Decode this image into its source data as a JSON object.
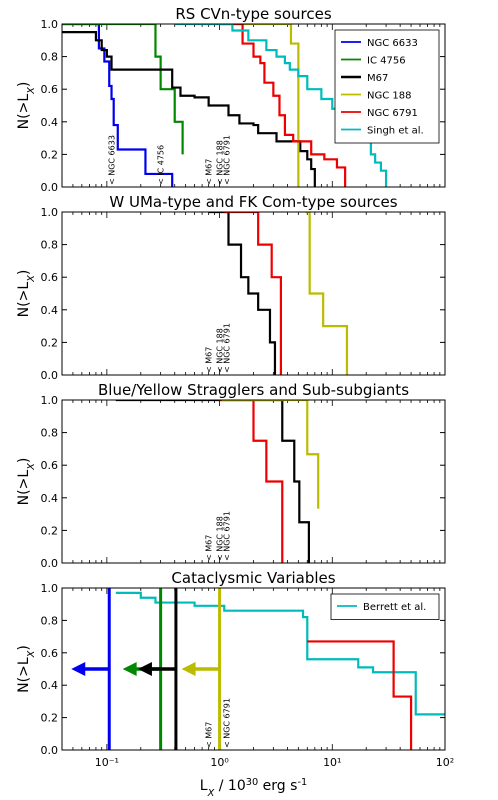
{
  "chart_data": [
    {
      "type": "line",
      "step": true,
      "title": "RS CVn-type sources",
      "ylabel": "N(>L_X)",
      "xscale": "log",
      "xlim": [
        0.04,
        100
      ],
      "ylim": [
        0,
        1
      ],
      "yticks": [
        "0.0",
        "0.2",
        "0.4",
        "0.6",
        "0.8",
        "1.0"
      ],
      "legend": {
        "placement": "top-right",
        "entries": [
          "NGC 6633",
          "IC 4756",
          "M67",
          "NGC 188",
          "NGC 6791",
          "Singh et al."
        ]
      },
      "series": [
        {
          "name": "NGC 6633",
          "color": "#0000ee",
          "x": [
            0.04,
            0.085,
            0.095,
            0.105,
            0.11,
            0.115,
            0.125,
            0.16,
            0.22,
            0.38
          ],
          "y": [
            1.0,
            0.85,
            0.77,
            0.62,
            0.54,
            0.38,
            0.23,
            0.23,
            0.08,
            0.0
          ]
        },
        {
          "name": "IC 4756",
          "color": "#008800",
          "x": [
            0.04,
            0.26,
            0.27,
            0.3,
            0.4,
            0.47
          ],
          "y": [
            1.0,
            1.0,
            0.8,
            0.6,
            0.4,
            0.2
          ]
        },
        {
          "name": "M67",
          "color": "#000000",
          "x": [
            0.04,
            0.08,
            0.09,
            0.1,
            0.11,
            0.38,
            0.45,
            0.6,
            0.8,
            1.2,
            1.5,
            2.0,
            2.2,
            3.2,
            5.2,
            6.0,
            6.5,
            7.0
          ],
          "y": [
            0.95,
            0.9,
            0.84,
            0.8,
            0.72,
            0.61,
            0.56,
            0.55,
            0.5,
            0.44,
            0.39,
            0.38,
            0.33,
            0.28,
            0.22,
            0.17,
            0.11,
            0.0
          ]
        },
        {
          "name": "NGC 188",
          "color": "#bbbb00",
          "x": [
            0.7,
            3.2,
            4.3,
            5.0
          ],
          "y": [
            1.0,
            1.0,
            0.88,
            0.0
          ]
        },
        {
          "name": "NGC 6791",
          "color": "#ee0000",
          "x": [
            1.0,
            1.6,
            2.0,
            2.3,
            2.5,
            3.0,
            3.4,
            3.8,
            4.5,
            6.5,
            8.5,
            11.0,
            13.0
          ],
          "y": [
            1.0,
            0.88,
            0.8,
            0.76,
            0.64,
            0.56,
            0.44,
            0.32,
            0.28,
            0.2,
            0.17,
            0.12,
            0.0
          ]
        },
        {
          "name": "Singh et al.",
          "color": "#00bbbb",
          "x": [
            0.4,
            1.3,
            1.8,
            2.6,
            3.2,
            3.8,
            4.2,
            5.0,
            6.0,
            8.0,
            10.0,
            11.0,
            12.5,
            15.0,
            18.0,
            22.0,
            24.0,
            27.0,
            30.0
          ],
          "y": [
            1.0,
            0.96,
            0.9,
            0.84,
            0.8,
            0.76,
            0.72,
            0.68,
            0.6,
            0.54,
            0.48,
            0.44,
            0.4,
            0.34,
            0.28,
            0.2,
            0.15,
            0.1,
            0.0
          ]
        }
      ],
      "annotations": [
        {
          "text": "< NGC 6633",
          "x": 0.11,
          "color": "#000000"
        },
        {
          "text": "< IC 4756",
          "x": 0.3,
          "color": "#000000"
        },
        {
          "text": "< M67",
          "x": 0.8,
          "color": "#000000"
        },
        {
          "text": "< NGC 188",
          "x": 1.0,
          "color": "#000000"
        },
        {
          "text": "< NGC 6791",
          "x": 1.15,
          "color": "#000000"
        }
      ]
    },
    {
      "type": "line",
      "step": true,
      "title": "W UMa-type and FK Com-type sources",
      "ylabel": "N(>L_X)",
      "xscale": "log",
      "xlim": [
        0.04,
        100
      ],
      "ylim": [
        0,
        1
      ],
      "yticks": [
        "0.0",
        "0.2",
        "0.4",
        "0.6",
        "0.8",
        "1.0"
      ],
      "series": [
        {
          "name": "M67",
          "color": "#000000",
          "x": [
            0.8,
            1.2,
            1.55,
            1.8,
            2.2,
            2.8,
            3.1
          ],
          "y": [
            1.0,
            0.8,
            0.6,
            0.5,
            0.4,
            0.2,
            0.0
          ]
        },
        {
          "name": "NGC 6791",
          "color": "#ee0000",
          "x": [
            1.1,
            2.2,
            2.9,
            3.5
          ],
          "y": [
            1.0,
            0.8,
            0.6,
            0.0
          ]
        },
        {
          "name": "NGC 188",
          "color": "#bbbb00",
          "x": [
            5.8,
            6.3,
            8.3,
            13.5
          ],
          "y": [
            1.0,
            0.5,
            0.3,
            0.0
          ]
        }
      ],
      "annotations": [
        {
          "text": "< M67",
          "x": 0.8,
          "color": "#000000"
        },
        {
          "text": "< NGC 188",
          "x": 1.0,
          "color": "#000000"
        },
        {
          "text": "< NGC 6791",
          "x": 1.15,
          "color": "#000000"
        }
      ]
    },
    {
      "type": "line",
      "step": true,
      "title": "Blue/Yellow Stragglers and Sub-subgiants",
      "ylabel": "N(>L_X)",
      "xscale": "log",
      "xlim": [
        0.04,
        100
      ],
      "ylim": [
        0,
        1
      ],
      "yticks": [
        "0.0",
        "0.2",
        "0.4",
        "0.6",
        "0.8",
        "1.0"
      ],
      "series": [
        {
          "name": "M67",
          "color": "#000000",
          "x": [
            0.12,
            3.6,
            4.6,
            5.1,
            6.2
          ],
          "y": [
            1.0,
            0.75,
            0.5,
            0.25,
            0.0
          ]
        },
        {
          "name": "NGC 6791",
          "color": "#ee0000",
          "x": [
            1.0,
            2.0,
            2.6,
            3.6
          ],
          "y": [
            1.0,
            0.75,
            0.5,
            0.0
          ]
        },
        {
          "name": "NGC 188",
          "color": "#bbbb00",
          "x": [
            1.05,
            6.0,
            7.5
          ],
          "y": [
            1.0,
            0.667,
            0.333
          ]
        }
      ],
      "annotations": [
        {
          "text": "< M67",
          "x": 0.8,
          "color": "#000000"
        },
        {
          "text": "< NGC 188",
          "x": 1.0,
          "color": "#000000"
        },
        {
          "text": "< NGC 6791",
          "x": 1.15,
          "color": "#000000"
        }
      ]
    },
    {
      "type": "line",
      "step": true,
      "title": "Cataclysmic Variables",
      "ylabel": "N(>L_X)",
      "xlabel": "L_X / 10^30 erg s^-1",
      "xscale": "log",
      "xlim": [
        0.04,
        100
      ],
      "ylim": [
        0,
        1
      ],
      "xticks": [
        "10⁻¹",
        "10⁰",
        "10¹",
        "10²"
      ],
      "yticks": [
        "0.0",
        "0.2",
        "0.4",
        "0.6",
        "0.8",
        "1.0"
      ],
      "legend": {
        "placement": "top-right",
        "entries": [
          "Berrett et al."
        ]
      },
      "series": [
        {
          "name": "Berrett et al.",
          "color": "#00bbbb",
          "x": [
            0.12,
            0.2,
            0.27,
            0.6,
            1.1,
            5.5,
            6.0,
            17.0,
            23.0,
            55.0,
            100.0
          ],
          "y": [
            0.97,
            0.94,
            0.91,
            0.89,
            0.86,
            0.82,
            0.56,
            0.51,
            0.48,
            0.22,
            0.22
          ]
        },
        {
          "name": "NGC 6791",
          "color": "#ee0000",
          "x": [
            6.0,
            35.0,
            50.0
          ],
          "y": [
            0.67,
            0.33,
            0.0
          ]
        }
      ],
      "upper_limits": [
        {
          "x": 0.105,
          "y": 0.5,
          "color": "#0000ee"
        },
        {
          "x": 0.3,
          "y": 0.5,
          "color": "#008800"
        },
        {
          "x": 0.41,
          "y": 0.5,
          "color": "#000000"
        },
        {
          "x": 1.0,
          "y": 0.5,
          "color": "#bbbb00"
        }
      ],
      "annotations": [
        {
          "text": "< M67",
          "x": 0.8,
          "color": "#000000"
        },
        {
          "text": "< NGC 6791",
          "x": 1.15,
          "color": "#000000"
        }
      ]
    }
  ]
}
